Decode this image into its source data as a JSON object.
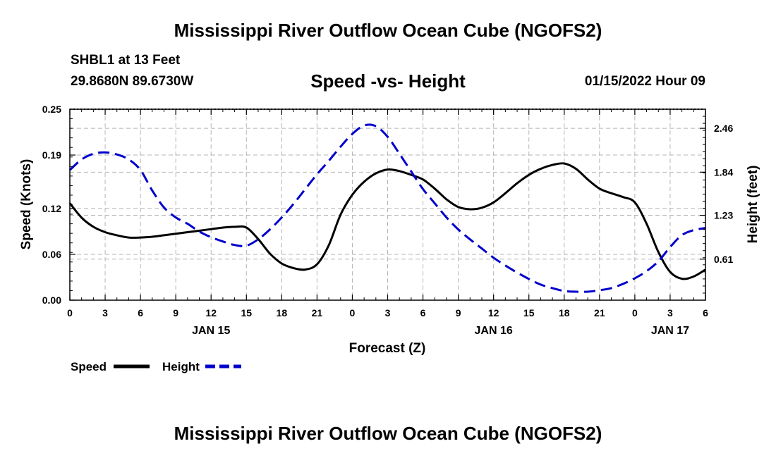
{
  "header": {
    "title": "Mississippi River Outflow Ocean Cube (NGOFS2)",
    "station": "SHBL1 at 13 Feet",
    "coords": "29.8680N  89.6730W",
    "subtitle": "Speed -vs- Height",
    "datetime": "01/15/2022 Hour 09"
  },
  "footer": {
    "title": "Mississippi River Outflow Ocean Cube (NGOFS2)"
  },
  "colors": {
    "speed": "#000000",
    "height": "#0000cc",
    "grid": "#b4b4b4"
  },
  "chart_data": {
    "type": "line",
    "title": "Speed -vs- Height",
    "xlabel": "Forecast (Z)",
    "ylabel": "Speed (Knots)",
    "y2label": "Height (feet)",
    "grid": true,
    "legend_position": "bottom-left",
    "xlim": [
      0,
      54
    ],
    "ylim": [
      0,
      0.25
    ],
    "y2lim": [
      0.03,
      2.73
    ],
    "x_ticks": [
      0,
      3,
      6,
      9,
      12,
      15,
      18,
      21,
      24,
      27,
      30,
      33,
      36,
      39,
      42,
      45,
      48,
      51,
      54
    ],
    "x_tick_labels": [
      "0",
      "3",
      "6",
      "9",
      "12",
      "15",
      "18",
      "21",
      "0",
      "3",
      "6",
      "9",
      "12",
      "15",
      "18",
      "21",
      "0",
      "3",
      "6"
    ],
    "date_labels": [
      {
        "x": 12,
        "label": "JAN 15"
      },
      {
        "x": 36,
        "label": "JAN 16"
      },
      {
        "x": 51,
        "label": "JAN 17"
      }
    ],
    "y_ticks": [
      0,
      0.06,
      0.12,
      0.19,
      0.25
    ],
    "y_tick_labels": [
      "0.00",
      "0.06",
      "0.12",
      "0.19",
      "0.25"
    ],
    "y2_ticks": [
      0.61,
      1.23,
      1.84,
      2.46
    ],
    "y2_tick_labels": [
      "0.61",
      "1.23",
      "1.84",
      "2.46"
    ],
    "series": [
      {
        "name": "Speed",
        "axis": "left",
        "style": "solid",
        "x": [
          0,
          1,
          2,
          3,
          4,
          5,
          6,
          7,
          8,
          9,
          10,
          11,
          12,
          13,
          14,
          15,
          16,
          17,
          18,
          19,
          20,
          21,
          22,
          23,
          24,
          25,
          26,
          27,
          28,
          29,
          30,
          31,
          32,
          33,
          34,
          35,
          36,
          37,
          38,
          39,
          40,
          41,
          42,
          43,
          44,
          45,
          46,
          47,
          48,
          49,
          50,
          51,
          52,
          53,
          54
        ],
        "values": [
          0.127,
          0.108,
          0.096,
          0.089,
          0.085,
          0.082,
          0.082,
          0.083,
          0.085,
          0.087,
          0.089,
          0.091,
          0.093,
          0.095,
          0.096,
          0.095,
          0.08,
          0.061,
          0.048,
          0.042,
          0.04,
          0.047,
          0.072,
          0.112,
          0.138,
          0.155,
          0.166,
          0.171,
          0.169,
          0.164,
          0.158,
          0.146,
          0.132,
          0.122,
          0.119,
          0.121,
          0.128,
          0.14,
          0.153,
          0.164,
          0.172,
          0.177,
          0.179,
          0.172,
          0.158,
          0.146,
          0.14,
          0.135,
          0.128,
          0.1,
          0.063,
          0.037,
          0.028,
          0.031,
          0.04
        ]
      },
      {
        "name": "Height",
        "axis": "right",
        "style": "dashed",
        "x": [
          0,
          1,
          2,
          3,
          4,
          5,
          6,
          7,
          8,
          9,
          10,
          11,
          12,
          13,
          14,
          15,
          16,
          17,
          18,
          19,
          20,
          21,
          22,
          23,
          24,
          25,
          26,
          27,
          28,
          29,
          30,
          31,
          32,
          33,
          34,
          35,
          36,
          37,
          38,
          39,
          40,
          41,
          42,
          43,
          44,
          45,
          46,
          47,
          48,
          49,
          50,
          51,
          52,
          53,
          54
        ],
        "values": [
          1.87,
          2.02,
          2.1,
          2.12,
          2.09,
          2.02,
          1.87,
          1.58,
          1.34,
          1.2,
          1.11,
          1.0,
          0.92,
          0.86,
          0.81,
          0.8,
          0.89,
          1.03,
          1.2,
          1.39,
          1.6,
          1.81,
          2.0,
          2.2,
          2.38,
          2.5,
          2.49,
          2.34,
          2.1,
          1.85,
          1.6,
          1.4,
          1.2,
          1.03,
          0.89,
          0.76,
          0.63,
          0.52,
          0.42,
          0.33,
          0.25,
          0.2,
          0.16,
          0.15,
          0.15,
          0.17,
          0.2,
          0.26,
          0.34,
          0.44,
          0.58,
          0.78,
          0.95,
          1.02,
          1.05
        ]
      }
    ]
  }
}
